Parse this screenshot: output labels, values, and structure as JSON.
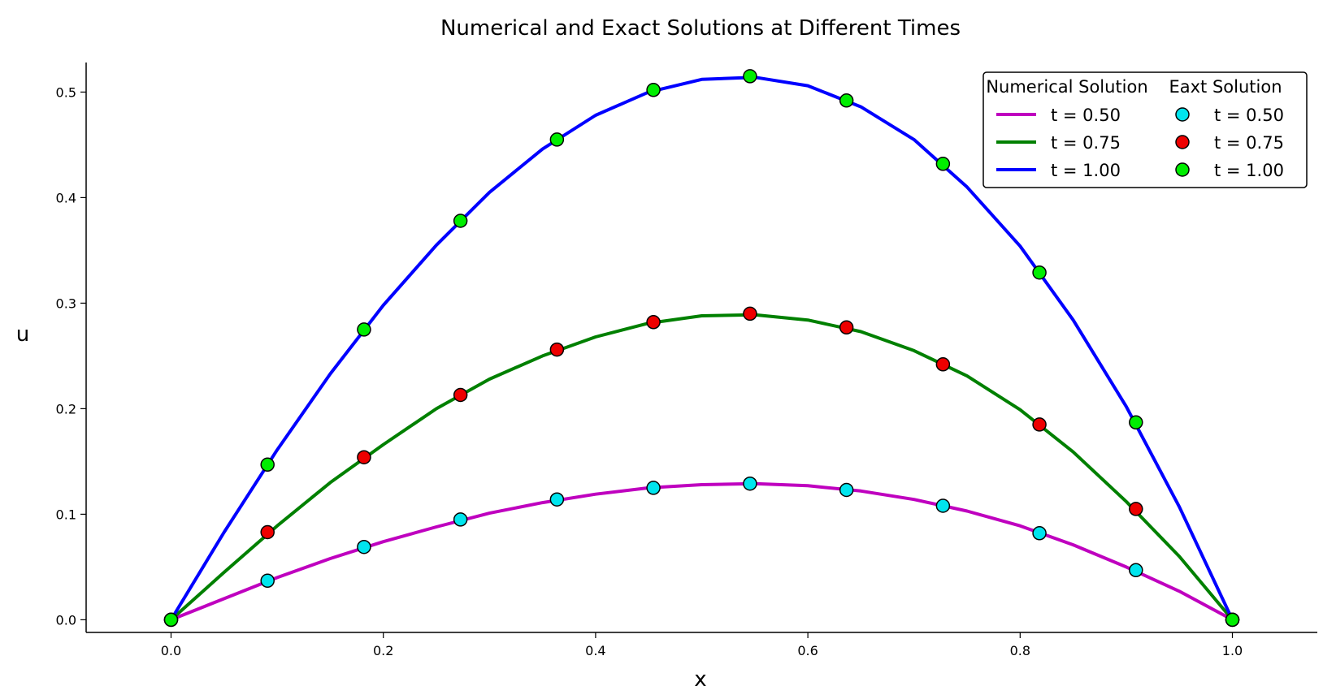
{
  "chart_data": {
    "type": "line",
    "title": "Numerical and Exact Solutions at Different Times",
    "xlabel": "x",
    "ylabel": "u",
    "xlim": [
      -0.08,
      1.08
    ],
    "ylim": [
      -0.012,
      0.528
    ],
    "xticks": [
      0.0,
      0.2,
      0.4,
      0.6,
      0.8,
      1.0
    ],
    "xtick_labels": [
      "0.0",
      "0.2",
      "0.4",
      "0.6",
      "0.8",
      "1.0"
    ],
    "yticks": [
      0.0,
      0.1,
      0.2,
      0.3,
      0.4,
      0.5
    ],
    "ytick_labels": [
      "0.0",
      "0.1",
      "0.2",
      "0.3",
      "0.4",
      "0.5"
    ],
    "grid": false,
    "legend": {
      "placement": "top-right",
      "columns": [
        {
          "title": "Numerical Solution"
        },
        {
          "title": "Eaxt Solution"
        }
      ]
    },
    "numerical_series": [
      {
        "name": "t = 0.50",
        "color": "#bf00bf",
        "x": [
          0.0,
          0.05,
          0.1,
          0.15,
          0.2,
          0.25,
          0.3,
          0.35,
          0.4,
          0.45,
          0.5,
          0.55,
          0.6,
          0.65,
          0.7,
          0.75,
          0.8,
          0.85,
          0.9,
          0.95,
          1.0
        ],
        "y": [
          0.0,
          0.02,
          0.04,
          0.058,
          0.074,
          0.088,
          0.101,
          0.111,
          0.119,
          0.125,
          0.128,
          0.129,
          0.127,
          0.122,
          0.114,
          0.103,
          0.089,
          0.071,
          0.05,
          0.027,
          0.0
        ]
      },
      {
        "name": "t = 0.75",
        "color": "#008000",
        "x": [
          0.0,
          0.05,
          0.1,
          0.15,
          0.2,
          0.25,
          0.3,
          0.35,
          0.4,
          0.45,
          0.5,
          0.55,
          0.6,
          0.65,
          0.7,
          0.75,
          0.8,
          0.85,
          0.9,
          0.95,
          1.0
        ],
        "y": [
          0.0,
          0.045,
          0.089,
          0.13,
          0.166,
          0.2,
          0.228,
          0.25,
          0.268,
          0.281,
          0.288,
          0.289,
          0.284,
          0.273,
          0.255,
          0.231,
          0.199,
          0.159,
          0.112,
          0.06,
          0.0
        ]
      },
      {
        "name": "t = 1.00",
        "color": "#0000ff",
        "x": [
          0.0,
          0.05,
          0.1,
          0.15,
          0.2,
          0.25,
          0.3,
          0.35,
          0.4,
          0.45,
          0.5,
          0.55,
          0.6,
          0.65,
          0.7,
          0.75,
          0.8,
          0.85,
          0.9,
          0.95,
          1.0
        ],
        "y": [
          0.0,
          0.083,
          0.161,
          0.233,
          0.298,
          0.355,
          0.405,
          0.446,
          0.478,
          0.5,
          0.512,
          0.514,
          0.506,
          0.486,
          0.455,
          0.41,
          0.354,
          0.284,
          0.202,
          0.107,
          0.0
        ]
      }
    ],
    "exact_series": [
      {
        "name": "t = 0.50",
        "color": "#00e5ee",
        "x": [
          0.0,
          0.0909,
          0.1818,
          0.2727,
          0.3636,
          0.4545,
          0.5455,
          0.6364,
          0.7273,
          0.8182,
          0.9091,
          1.0
        ],
        "y": [
          0.0,
          0.037,
          0.069,
          0.095,
          0.114,
          0.125,
          0.129,
          0.123,
          0.108,
          0.082,
          0.047,
          0.0
        ]
      },
      {
        "name": "t = 0.75",
        "color": "#ee0000",
        "x": [
          0.0,
          0.0909,
          0.1818,
          0.2727,
          0.3636,
          0.4545,
          0.5455,
          0.6364,
          0.7273,
          0.8182,
          0.9091,
          1.0
        ],
        "y": [
          0.0,
          0.083,
          0.154,
          0.213,
          0.256,
          0.282,
          0.29,
          0.277,
          0.242,
          0.185,
          0.105,
          0.0
        ]
      },
      {
        "name": "t = 1.00",
        "color": "#00ee00",
        "x": [
          0.0,
          0.0909,
          0.1818,
          0.2727,
          0.3636,
          0.4545,
          0.5455,
          0.6364,
          0.7273,
          0.8182,
          0.9091,
          1.0
        ],
        "y": [
          0.0,
          0.147,
          0.275,
          0.378,
          0.455,
          0.502,
          0.515,
          0.492,
          0.432,
          0.329,
          0.187,
          0.0
        ]
      }
    ]
  }
}
